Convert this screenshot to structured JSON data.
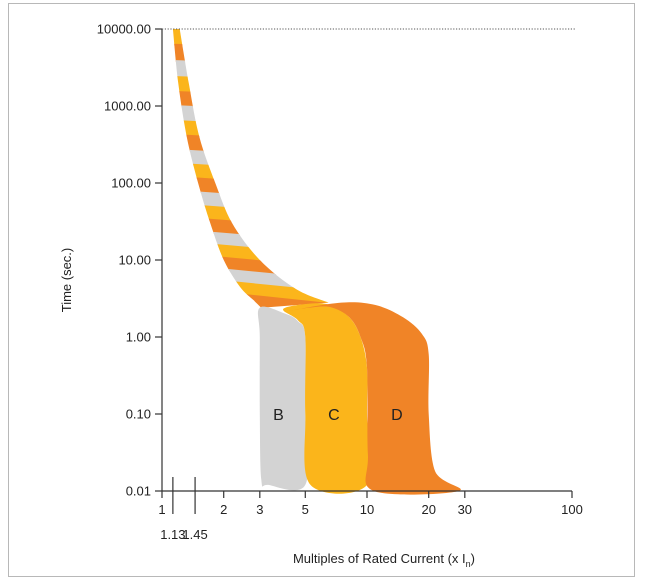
{
  "chart_data": {
    "type": "area",
    "title": "",
    "xlabel": "Multiples of Rated Current (x I",
    "xlabel_sub": "n",
    "xlabel_close": ")",
    "ylabel": "Time (sec.)",
    "x_scale": "log",
    "y_scale": "log",
    "xlim": [
      1,
      100
    ],
    "ylim": [
      0.01,
      10000
    ],
    "grid": false,
    "x_ticks": [
      {
        "value": 1,
        "label": "1"
      },
      {
        "value": 2,
        "label": "2"
      },
      {
        "value": 3,
        "label": "3"
      },
      {
        "value": 5,
        "label": "5"
      },
      {
        "value": 10,
        "label": "10"
      },
      {
        "value": 20,
        "label": "20"
      },
      {
        "value": 30,
        "label": "30"
      },
      {
        "value": 100,
        "label": "100"
      }
    ],
    "x_secondary_ticks": [
      {
        "value": 1.13,
        "label": "1.13"
      },
      {
        "value": 1.45,
        "label": "1.45"
      }
    ],
    "y_ticks": [
      {
        "value": 0.01,
        "label": "0.01"
      },
      {
        "value": 0.1,
        "label": "0.10"
      },
      {
        "value": 1,
        "label": "1.00"
      },
      {
        "value": 10,
        "label": "10.00"
      },
      {
        "value": 100,
        "label": "100.00"
      },
      {
        "value": 1000,
        "label": "1000.00"
      },
      {
        "value": 10000,
        "label": "10000.00"
      }
    ],
    "reference_line": {
      "y": 10000,
      "style": "dotted"
    },
    "colors": {
      "B": "#d3d3d3",
      "C": "#fbb51b",
      "D": "#f08427",
      "axis": "#333333"
    },
    "thermal_band": {
      "stripe_pattern": [
        "B",
        "C",
        "D"
      ],
      "left_edge": [
        [
          1.13,
          10000
        ],
        [
          1.2,
          2000
        ],
        [
          1.32,
          400
        ],
        [
          1.5,
          100
        ],
        [
          1.72,
          30
        ],
        [
          2.0,
          10
        ],
        [
          2.4,
          4.5
        ],
        [
          2.8,
          3
        ],
        [
          3.05,
          2.4
        ]
      ],
      "right_edge": [
        [
          1.22,
          10000
        ],
        [
          1.35,
          2000
        ],
        [
          1.52,
          400
        ],
        [
          1.82,
          100
        ],
        [
          2.2,
          30
        ],
        [
          3.0,
          10
        ],
        [
          4.5,
          4.2
        ],
        [
          6.5,
          2.8
        ]
      ],
      "stripe_boundaries": [
        9000,
        5500,
        3300,
        2000,
        1250,
        800,
        500,
        320,
        200,
        130,
        85,
        55,
        36,
        24,
        16,
        11,
        7.5,
        5.2,
        3.6,
        2.5
      ]
    },
    "series": [
      {
        "name": "B",
        "label_position": [
          3.7,
          0.1
        ],
        "boundary": [
          [
            3.0,
            2.4
          ],
          [
            3.0,
            1.0
          ],
          [
            3.0,
            0.1
          ],
          [
            3.05,
            0.014
          ],
          [
            3.3,
            0.012
          ],
          [
            5.0,
            0.012
          ],
          [
            5.0,
            0.1
          ],
          [
            5.0,
            1.0
          ],
          [
            4.6,
            1.6
          ],
          [
            4.0,
            2.0
          ]
        ]
      },
      {
        "name": "C",
        "label_position": [
          6.9,
          0.1
        ],
        "boundary": [
          [
            3.9,
            2.3
          ],
          [
            5.2,
            2.7
          ],
          [
            6.6,
            2.6
          ],
          [
            8.2,
            1.8
          ],
          [
            9.3,
            1.0
          ],
          [
            10.0,
            0.4
          ],
          [
            10.0,
            0.1
          ],
          [
            10.0,
            0.012
          ],
          [
            5.3,
            0.012
          ],
          [
            5.0,
            0.1
          ],
          [
            5.0,
            1.0
          ],
          [
            4.6,
            1.65
          ]
        ]
      },
      {
        "name": "D",
        "label_position": [
          14.0,
          0.1
        ],
        "boundary": [
          [
            4.2,
            2.2
          ],
          [
            7.5,
            2.8
          ],
          [
            11.0,
            2.6
          ],
          [
            15.0,
            1.8
          ],
          [
            18.5,
            1.1
          ],
          [
            20.0,
            0.6
          ],
          [
            20.0,
            0.1
          ],
          [
            21.5,
            0.018
          ],
          [
            28.0,
            0.01
          ],
          [
            10.8,
            0.01
          ],
          [
            10.1,
            0.03
          ],
          [
            10.0,
            0.4
          ],
          [
            9.3,
            1.0
          ],
          [
            8.2,
            1.8
          ],
          [
            6.6,
            2.45
          ],
          [
            5.2,
            2.4
          ]
        ]
      }
    ]
  }
}
